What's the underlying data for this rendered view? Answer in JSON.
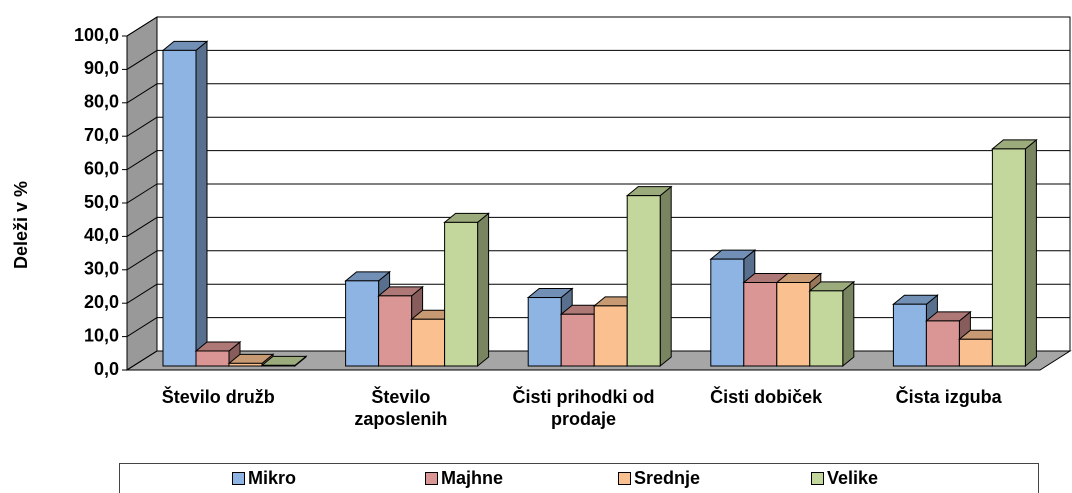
{
  "chart_data": {
    "type": "bar3d",
    "y_label": "Deleži v %",
    "categories": [
      "Število družb",
      "Število zaposlenih",
      "Čisti prihodki od prodaje",
      "Čisti dobiček",
      "Čista izguba"
    ],
    "series": [
      {
        "name": "Mikro",
        "color": "#8eb4e3",
        "values": [
          94.5,
          25.5,
          20.5,
          32,
          18.5
        ]
      },
      {
        "name": "Majhne",
        "color": "#d99694",
        "values": [
          4.5,
          21,
          15.5,
          25,
          13.5
        ]
      },
      {
        "name": "Srednje",
        "color": "#fac090",
        "values": [
          0.8,
          14,
          18,
          25,
          8
        ]
      },
      {
        "name": "Velike",
        "color": "#c3d69b",
        "values": [
          0.2,
          43,
          51,
          22.5,
          65
        ]
      }
    ],
    "ylim": [
      0,
      100
    ],
    "yticks": [
      {
        "value": 0,
        "label": "0,0"
      },
      {
        "value": 10,
        "label": "10,0"
      },
      {
        "value": 20,
        "label": "20,0"
      },
      {
        "value": 30,
        "label": "30,0"
      },
      {
        "value": 40,
        "label": "40,0"
      },
      {
        "value": 50,
        "label": "50,0"
      },
      {
        "value": 60,
        "label": "60,0"
      },
      {
        "value": 70,
        "label": "70,0"
      },
      {
        "value": 80,
        "label": "80,0"
      },
      {
        "value": 90,
        "label": "90,0"
      },
      {
        "value": 100,
        "label": "100,0"
      }
    ],
    "grid": true
  }
}
